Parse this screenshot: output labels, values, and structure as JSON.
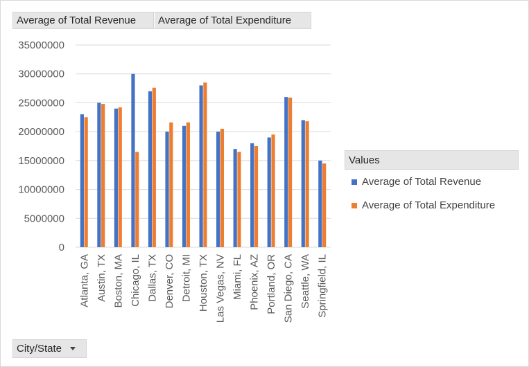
{
  "field_buttons": {
    "revenue": "Average of Total Revenue",
    "expenditure": "Average of Total Expenditure",
    "city_state": "City/State"
  },
  "legend": {
    "header": "Values",
    "items": [
      {
        "label": "Average of Total Revenue",
        "color": "#4472c4"
      },
      {
        "label": "Average of Total Expenditure",
        "color": "#ed7d31"
      }
    ]
  },
  "chart_data": {
    "type": "bar",
    "title": "",
    "xlabel": "",
    "ylabel": "",
    "ylim": [
      0,
      35000000
    ],
    "yticks": [
      0,
      5000000,
      10000000,
      15000000,
      20000000,
      25000000,
      30000000,
      35000000
    ],
    "grid": true,
    "legend_position": "right",
    "categories": [
      "Atlanta, GA",
      "Austin, TX",
      "Boston, MA",
      "Chicago, IL",
      "Dallas, TX",
      "Denver, CO",
      "Detroit, MI",
      "Houston, TX",
      "Las Vegas, NV",
      "Miami, FL",
      "Phoenix, AZ",
      "Portland, OR",
      "San Diego, CA",
      "Seattle, WA",
      "Springfield, IL"
    ],
    "series": [
      {
        "name": "Average of Total Revenue",
        "color": "#4472c4",
        "values": [
          23000000,
          25000000,
          24000000,
          30000000,
          27000000,
          20000000,
          21000000,
          28000000,
          20000000,
          17000000,
          18000000,
          19000000,
          26000000,
          22000000,
          15000000
        ]
      },
      {
        "name": "Average of Total Expenditure",
        "color": "#ed7d31",
        "values": [
          22500000,
          24800000,
          24200000,
          16500000,
          27600000,
          21600000,
          21600000,
          28500000,
          20500000,
          16500000,
          17500000,
          19500000,
          25900000,
          21800000,
          14500000
        ]
      }
    ]
  }
}
